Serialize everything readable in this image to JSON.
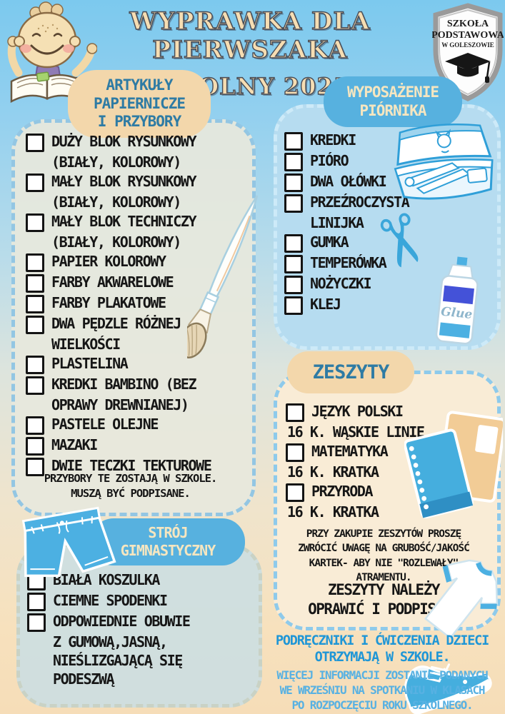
{
  "page": {
    "title_line1": "WYPRAWKA DLA PIERWSZAKA",
    "title_line2": "ROK SZKOLNY 2025/2026"
  },
  "logo": {
    "line1": "SZKOŁA",
    "line2": "PODSTAWOWA",
    "line3": "W GOLESZOWIE"
  },
  "sections": {
    "artykuly": {
      "header_lines": [
        "ARTYKUŁY",
        "PAPIERNICZE",
        "I PRZYBORY"
      ],
      "items": [
        {
          "lines": [
            "DUŻY BLOK RYSUNKOWY",
            "(BIAŁY, KOLOROWY)"
          ]
        },
        {
          "lines": [
            "MAŁY BLOK RYSUNKOWY",
            "(BIAŁY, KOLOROWY)"
          ]
        },
        {
          "lines": [
            "MAŁY BLOK TECHNICZY",
            "(BIAŁY, KOLOROWY)"
          ]
        },
        {
          "lines": [
            "PAPIER KOLOROWY"
          ]
        },
        {
          "lines": [
            "FARBY AKWARELOWE"
          ]
        },
        {
          "lines": [
            "FARBY PLAKATOWE"
          ]
        },
        {
          "lines": [
            "DWA PĘDZLE RÓŻNEJ",
            "WIELKOŚCI"
          ]
        },
        {
          "lines": [
            "PLASTELINA"
          ]
        },
        {
          "lines": [
            "KREDKI BAMBINO (BEZ",
            "OPRAWY DREWNIANEJ)"
          ]
        },
        {
          "lines": [
            "PASTELE OLEJNE"
          ]
        },
        {
          "lines": [
            "MAZAKI"
          ]
        },
        {
          "lines": [
            "DWIE TECZKI TEKTUROWE"
          ]
        }
      ],
      "note_lines": [
        "PRZYBORY TE ZOSTAJĄ W SZKOLE.",
        "MUSZĄ BYĆ PODPISANE."
      ]
    },
    "piornik": {
      "header_lines": [
        "WYPOSAŻENIE",
        "PIÓRNIKA"
      ],
      "items": [
        {
          "lines": [
            "KREDKI"
          ]
        },
        {
          "lines": [
            "PIÓRO"
          ]
        },
        {
          "lines": [
            "DWA OŁÓWKI"
          ]
        },
        {
          "lines": [
            "PRZEŹROCZYSTA",
            "LINIJKA"
          ]
        },
        {
          "lines": [
            "GUMKA"
          ]
        },
        {
          "lines": [
            "TEMPERÓWKA"
          ]
        },
        {
          "lines": [
            "NOŻYCZKI"
          ]
        },
        {
          "lines": [
            "KLEJ"
          ]
        }
      ]
    },
    "zeszyty": {
      "header": "ZESZYTY",
      "items": [
        {
          "lines": [
            "JĘZYK POLSKI",
            "16 K. WĄSKIE LINIE"
          ]
        },
        {
          "lines": [
            "MATEMATYKA",
            "16 K. KRATKA"
          ]
        },
        {
          "lines": [
            "PRZYRODA",
            "16 K. KRATKA"
          ]
        }
      ],
      "note_lines": [
        "PRZY ZAKUPIE ZESZYTÓW PROSZĘ",
        "ZWRÓCIĆ UWAGĘ NA GRUBOŚĆ/JAKOŚĆ",
        "KARTEK- ABY NIE \"ROZLEWAŁY\"",
        "ATRAMENTU."
      ],
      "note2_lines": [
        "ZESZYTY NALEŻY",
        "OPRAWIĆ I PODPISAĆ."
      ]
    },
    "stroj": {
      "header_lines": [
        "STRÓJ",
        "GIMNASTYCZNY"
      ],
      "items": [
        {
          "lines": [
            "BIAŁA KOSZULKA"
          ]
        },
        {
          "lines": [
            "CIEMNE SPODENKI"
          ]
        },
        {
          "lines": [
            "ODPOWIEDNIE OBUWIE",
            "Z GUMOWĄ,JASNĄ,",
            "NIEŚLIZGAJĄCĄ SIĘ",
            "PODESZWĄ"
          ]
        }
      ]
    }
  },
  "footer": {
    "bold_lines": [
      "PODRĘCZNIKI I ĆWICZENIA DZIECI",
      "OTRZYMAJĄ W SZKOLE."
    ],
    "light_lines": [
      "WIĘCEJ INFORMACJI ZOSTANIE PODANYCH",
      "WE WRZEŚNIU NA SPOTKANIU W KLASACH",
      "PO ROZPOCZĘCIU ROKU SZKOLNEGO."
    ]
  },
  "illustrations": {
    "glue_label": "Glue",
    "scissors_glyph": "✂"
  },
  "colors": {
    "sky_blue_bg": "#7cc9ee",
    "peach_bg": "#f6ddb8",
    "pill_peach": "#f3d7ab",
    "pill_blue": "#57b1df",
    "header_teal_text": "#2e7ba4",
    "header_cream_text": "#f6e6c0",
    "title_cream": "#f6ddb2",
    "footer_blue_bold": "#1f96d6",
    "footer_blue_light": "#58b1e2",
    "list_text": "#161616"
  }
}
